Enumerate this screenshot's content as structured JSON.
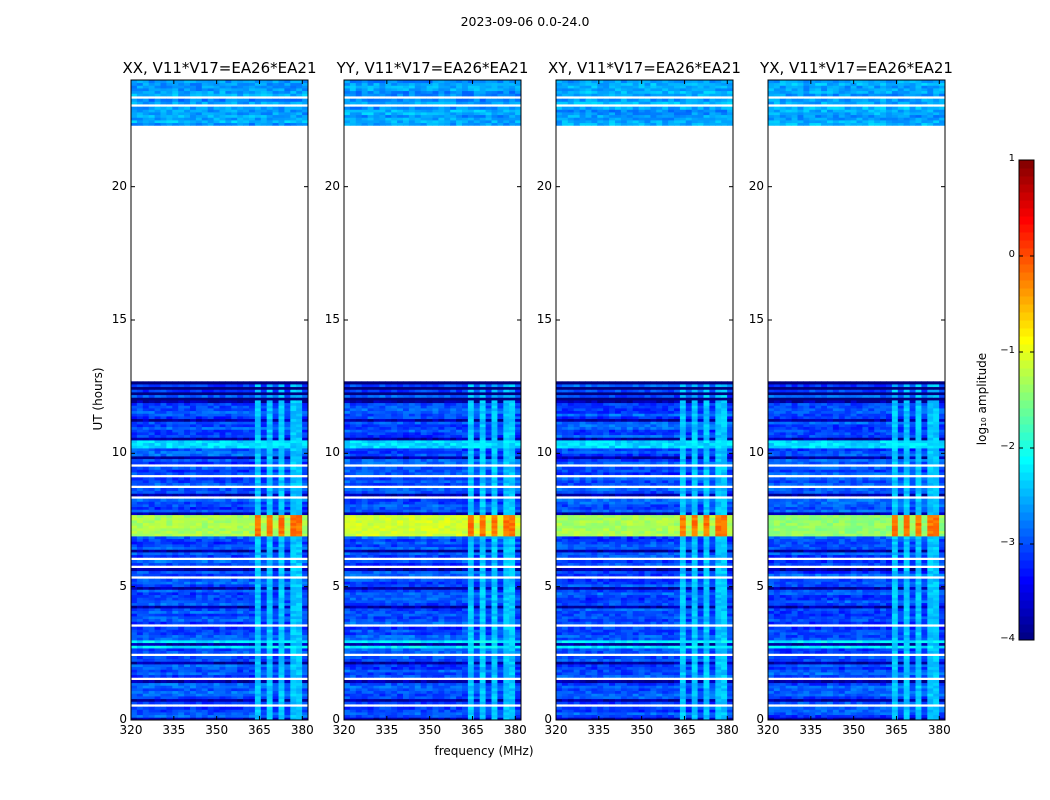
{
  "figure_title": "2023-09-06 0.0-24.0",
  "colorbar": {
    "label": "log₁₀ amplitude",
    "range": [
      -4,
      1
    ],
    "ticks": [
      1,
      0,
      -1,
      -2,
      -3,
      -4
    ],
    "colormap": [
      "#00007f",
      "#0000ff",
      "#0080ff",
      "#00ffff",
      "#80ff80",
      "#ffff00",
      "#ff8000",
      "#ff0000",
      "#7f0000"
    ]
  },
  "chart_data": [
    {
      "type": "heatmap",
      "title": "XX, V11*V17=EA26*EA21",
      "xlabel": "",
      "ylabel": "UT (hours)",
      "xlim": [
        320,
        382
      ],
      "ylim": [
        0,
        24
      ],
      "xticks": [
        320,
        335,
        350,
        365,
        380
      ],
      "yticks": [
        0,
        5,
        10,
        15,
        20
      ],
      "data_gap_hours": [
        12.7,
        22.3
      ],
      "rfi_band_hours": [
        6.9,
        7.7
      ],
      "rfi_channels_mhz": [
        364,
        368,
        373,
        378
      ],
      "rfi_band_level": -1.3
    },
    {
      "type": "heatmap",
      "title": "YY, V11*V17=EA26*EA21",
      "xlabel": "frequency (MHz)",
      "ylabel": "",
      "xlim": [
        320,
        382
      ],
      "ylim": [
        0,
        24
      ],
      "xticks": [
        320,
        335,
        350,
        365,
        380
      ],
      "yticks": [
        0,
        5,
        10,
        15,
        20
      ],
      "data_gap_hours": [
        12.7,
        22.3
      ],
      "rfi_band_hours": [
        6.9,
        7.7
      ],
      "rfi_channels_mhz": [
        364,
        368,
        373,
        378
      ],
      "rfi_band_level": -1.1
    },
    {
      "type": "heatmap",
      "title": "XY, V11*V17=EA26*EA21",
      "xlabel": "",
      "ylabel": "",
      "xlim": [
        320,
        382
      ],
      "ylim": [
        0,
        24
      ],
      "xticks": [
        320,
        335,
        350,
        365,
        380
      ],
      "yticks": [
        0,
        5,
        10,
        15,
        20
      ],
      "data_gap_hours": [
        12.7,
        22.3
      ],
      "rfi_band_hours": [
        6.9,
        7.7
      ],
      "rfi_channels_mhz": [
        364,
        368,
        373,
        378
      ],
      "rfi_band_level": -1.3
    },
    {
      "type": "heatmap",
      "title": "YX, V11*V17=EA26*EA21",
      "xlabel": "",
      "ylabel": "",
      "xlim": [
        320,
        382
      ],
      "ylim": [
        0,
        24
      ],
      "xticks": [
        320,
        335,
        350,
        365,
        380
      ],
      "yticks": [
        0,
        5,
        10,
        15,
        20
      ],
      "data_gap_hours": [
        12.7,
        22.3
      ],
      "rfi_band_hours": [
        6.9,
        7.7
      ],
      "rfi_channels_mhz": [
        364,
        368,
        373,
        378
      ],
      "rfi_band_level": -1.4
    }
  ]
}
